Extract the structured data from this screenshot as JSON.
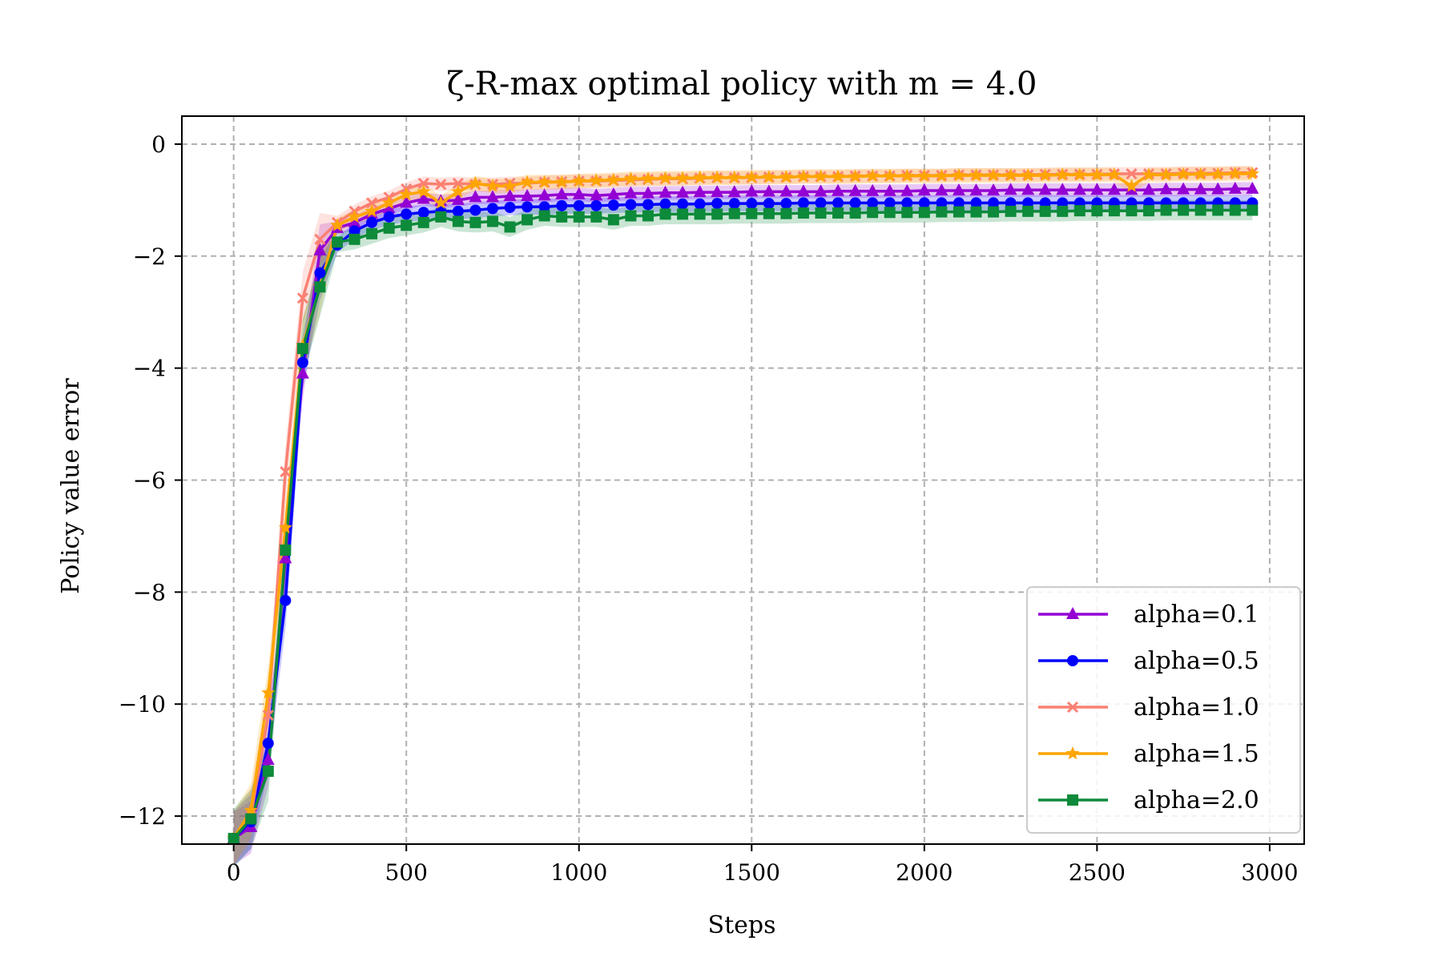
{
  "chart_data": {
    "type": "line",
    "title": "ζ-R-max optimal policy with m = 4.0",
    "xlabel": "Steps",
    "ylabel": "Policy value error",
    "xlim": [
      -150,
      3100
    ],
    "ylim": [
      -12.5,
      0.5
    ],
    "xticks": [
      0,
      500,
      1000,
      1500,
      2000,
      2500,
      3000
    ],
    "xtick_labels": [
      "0",
      "500",
      "1000",
      "1500",
      "2000",
      "2500",
      "3000"
    ],
    "yticks": [
      0,
      -2,
      -4,
      -6,
      -8,
      -10,
      -12
    ],
    "ytick_labels": [
      "0",
      "−2",
      "−4",
      "−6",
      "−8",
      "−10",
      "−12"
    ],
    "grid": true,
    "legend_position": "lower-right",
    "x": [
      0,
      50,
      100,
      150,
      200,
      250,
      300,
      350,
      400,
      450,
      500,
      550,
      600,
      650,
      700,
      750,
      800,
      850,
      900,
      950,
      1000,
      1050,
      1100,
      1150,
      1200,
      1250,
      1300,
      1350,
      1400,
      1450,
      1500,
      1550,
      1600,
      1650,
      1700,
      1750,
      1800,
      1850,
      1900,
      1950,
      2000,
      2050,
      2100,
      2150,
      2200,
      2250,
      2300,
      2350,
      2400,
      2450,
      2500,
      2550,
      2600,
      2650,
      2700,
      2750,
      2800,
      2850,
      2900,
      2950
    ],
    "series": [
      {
        "name": "alpha=0.1",
        "color": "#9400D3",
        "marker": "triangle",
        "values": [
          -12.4,
          -12.2,
          -11.0,
          -7.4,
          -4.1,
          -1.9,
          -1.5,
          -1.4,
          -1.25,
          -1.15,
          -1.05,
          -0.98,
          -1.02,
          -1.0,
          -0.95,
          -0.95,
          -0.93,
          -0.93,
          -0.92,
          -0.9,
          -0.9,
          -0.92,
          -0.9,
          -0.88,
          -0.88,
          -0.87,
          -0.87,
          -0.86,
          -0.86,
          -0.86,
          -0.85,
          -0.85,
          -0.85,
          -0.85,
          -0.85,
          -0.84,
          -0.84,
          -0.84,
          -0.84,
          -0.84,
          -0.83,
          -0.83,
          -0.83,
          -0.83,
          -0.83,
          -0.82,
          -0.82,
          -0.82,
          -0.82,
          -0.82,
          -0.82,
          -0.82,
          -0.82,
          -0.82,
          -0.81,
          -0.81,
          -0.81,
          -0.81,
          -0.8,
          -0.8
        ],
        "band": 0.12
      },
      {
        "name": "alpha=0.5",
        "color": "#0000FF",
        "marker": "circle",
        "values": [
          -12.4,
          -12.1,
          -10.7,
          -8.15,
          -3.9,
          -2.3,
          -1.8,
          -1.55,
          -1.4,
          -1.3,
          -1.25,
          -1.22,
          -1.2,
          -1.2,
          -1.18,
          -1.15,
          -1.13,
          -1.12,
          -1.12,
          -1.1,
          -1.1,
          -1.1,
          -1.09,
          -1.08,
          -1.08,
          -1.07,
          -1.07,
          -1.07,
          -1.06,
          -1.06,
          -1.06,
          -1.06,
          -1.06,
          -1.05,
          -1.05,
          -1.05,
          -1.05,
          -1.05,
          -1.05,
          -1.05,
          -1.05,
          -1.05,
          -1.05,
          -1.05,
          -1.05,
          -1.05,
          -1.05,
          -1.05,
          -1.05,
          -1.05,
          -1.05,
          -1.05,
          -1.05,
          -1.05,
          -1.05,
          -1.05,
          -1.05,
          -1.05,
          -1.05,
          -1.05
        ],
        "band": 0.14
      },
      {
        "name": "alpha=1.0",
        "color": "#FA8072",
        "marker": "x",
        "values": [
          -12.4,
          -12.0,
          -10.2,
          -5.85,
          -2.75,
          -1.7,
          -1.4,
          -1.2,
          -1.05,
          -0.95,
          -0.8,
          -0.7,
          -0.72,
          -0.7,
          -0.72,
          -0.72,
          -0.7,
          -0.7,
          -0.68,
          -0.67,
          -0.66,
          -0.66,
          -0.65,
          -0.64,
          -0.63,
          -0.62,
          -0.62,
          -0.61,
          -0.6,
          -0.6,
          -0.6,
          -0.59,
          -0.59,
          -0.58,
          -0.58,
          -0.58,
          -0.57,
          -0.57,
          -0.57,
          -0.56,
          -0.56,
          -0.56,
          -0.55,
          -0.55,
          -0.55,
          -0.55,
          -0.55,
          -0.54,
          -0.54,
          -0.54,
          -0.54,
          -0.53,
          -0.53,
          -0.53,
          -0.53,
          -0.52,
          -0.52,
          -0.52,
          -0.51,
          -0.51
        ],
        "band": 0.12
      },
      {
        "name": "alpha=1.5",
        "color": "#FFA500",
        "marker": "star",
        "values": [
          -12.4,
          -11.9,
          -9.8,
          -6.85,
          -3.6,
          -2.55,
          -1.45,
          -1.3,
          -1.2,
          -1.05,
          -0.9,
          -0.85,
          -1.05,
          -0.85,
          -0.7,
          -0.75,
          -0.75,
          -0.68,
          -0.68,
          -0.68,
          -0.66,
          -0.65,
          -0.64,
          -0.62,
          -0.62,
          -0.61,
          -0.61,
          -0.6,
          -0.6,
          -0.6,
          -0.59,
          -0.59,
          -0.59,
          -0.58,
          -0.58,
          -0.58,
          -0.58,
          -0.57,
          -0.57,
          -0.57,
          -0.57,
          -0.57,
          -0.56,
          -0.56,
          -0.56,
          -0.56,
          -0.56,
          -0.56,
          -0.55,
          -0.55,
          -0.55,
          -0.55,
          -0.75,
          -0.55,
          -0.55,
          -0.54,
          -0.54,
          -0.54,
          -0.53,
          -0.53
        ],
        "band": 0.13
      },
      {
        "name": "alpha=2.0",
        "color": "#0D8A3A",
        "marker": "square",
        "values": [
          -12.4,
          -12.05,
          -11.2,
          -7.25,
          -3.65,
          -2.55,
          -1.75,
          -1.7,
          -1.6,
          -1.5,
          -1.45,
          -1.4,
          -1.3,
          -1.38,
          -1.4,
          -1.38,
          -1.48,
          -1.35,
          -1.28,
          -1.3,
          -1.3,
          -1.3,
          -1.35,
          -1.28,
          -1.28,
          -1.25,
          -1.25,
          -1.25,
          -1.25,
          -1.24,
          -1.24,
          -1.24,
          -1.24,
          -1.23,
          -1.23,
          -1.23,
          -1.23,
          -1.22,
          -1.22,
          -1.22,
          -1.22,
          -1.21,
          -1.21,
          -1.21,
          -1.21,
          -1.2,
          -1.2,
          -1.2,
          -1.2,
          -1.19,
          -1.19,
          -1.19,
          -1.19,
          -1.19,
          -1.18,
          -1.18,
          -1.18,
          -1.18,
          -1.18,
          -1.18
        ],
        "band": 0.18
      }
    ]
  }
}
